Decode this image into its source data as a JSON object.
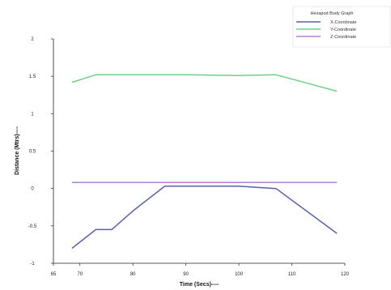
{
  "chart_data": {
    "type": "line",
    "title": "",
    "xlabel": "Time (Secs)----",
    "ylabel": "Distance (Mtrs)----",
    "xlim": [
      65,
      120
    ],
    "ylim": [
      -1,
      2
    ],
    "xticks": [
      65,
      70,
      80,
      90,
      100,
      110,
      120
    ],
    "xtick_labels": [
      "65",
      "70",
      "80",
      "90",
      "100",
      "110",
      "120"
    ],
    "yticks": [
      -1,
      -0.5,
      0,
      0.5,
      1,
      1.5,
      2
    ],
    "ytick_labels": [
      "-1",
      "-0.5",
      "0",
      "0.5",
      "1",
      "1.5",
      "2"
    ],
    "grid": false,
    "legend": {
      "title": "Hexapod Body Graph",
      "placement": "top-right"
    },
    "series": [
      {
        "name": "X-Coordinate",
        "color": "#5a5fb0",
        "x": [
          68.5,
          73,
          76,
          80,
          86,
          90,
          100,
          107,
          118.5
        ],
        "y": [
          -0.8,
          -0.55,
          -0.55,
          -0.3,
          0.03,
          0.03,
          0.03,
          0.0,
          -0.6
        ]
      },
      {
        "name": "Y-Coordinate",
        "color": "#6fd08a",
        "x": [
          68.5,
          73,
          90,
          100,
          107,
          118.5
        ],
        "y": [
          1.42,
          1.52,
          1.52,
          1.51,
          1.52,
          1.3
        ]
      },
      {
        "name": "Z-Coordinate",
        "color": "#b77fcf",
        "x": [
          68.5,
          118.5
        ],
        "y": [
          0.08,
          0.08
        ]
      }
    ]
  }
}
